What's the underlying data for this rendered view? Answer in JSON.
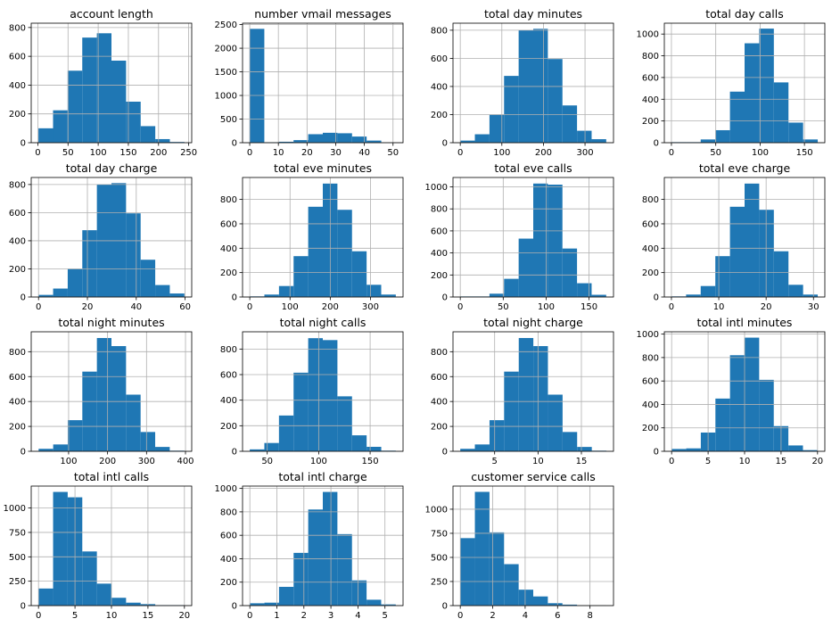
{
  "chart_data": [
    {
      "type": "bar",
      "title": "account length",
      "edges": [
        1,
        25.2,
        49.4,
        73.6,
        97.8,
        122,
        146.2,
        170.4,
        194.6,
        218.8,
        243
      ],
      "values": [
        100,
        225,
        500,
        730,
        760,
        570,
        285,
        115,
        25,
        5
      ],
      "xlim": [
        -11,
        255
      ],
      "ylim": [
        0,
        830
      ],
      "xticks": [
        0,
        50,
        100,
        150,
        200,
        250
      ],
      "yticks": [
        0,
        200,
        400,
        600,
        800
      ]
    },
    {
      "type": "bar",
      "title": "number vmail messages",
      "edges": [
        0,
        5.1,
        10.2,
        15.3,
        20.4,
        25.5,
        30.6,
        35.7,
        40.8,
        45.9,
        51
      ],
      "values": [
        2410,
        10,
        20,
        55,
        180,
        210,
        200,
        130,
        45,
        5
      ],
      "xlim": [
        -2.5,
        53.5
      ],
      "ylim": [
        0,
        2530
      ],
      "xticks": [
        0,
        10,
        20,
        30,
        40,
        50
      ],
      "yticks": [
        0,
        500,
        1000,
        1500,
        2000,
        2500
      ]
    },
    {
      "type": "bar",
      "title": "total day minutes",
      "edges": [
        0,
        35.1,
        70.2,
        105.3,
        140.4,
        175.5,
        210.6,
        245.7,
        280.8,
        315.9,
        351
      ],
      "values": [
        15,
        60,
        200,
        475,
        800,
        810,
        595,
        265,
        85,
        25
      ],
      "xlim": [
        -17.5,
        368.5
      ],
      "ylim": [
        0,
        850
      ],
      "xticks": [
        0,
        100,
        200,
        300
      ],
      "yticks": [
        0,
        200,
        400,
        600,
        800
      ]
    },
    {
      "type": "bar",
      "title": "total day calls",
      "edges": [
        0,
        16.5,
        33,
        49.5,
        66,
        82.5,
        99,
        115.5,
        132,
        148.5,
        165
      ],
      "values": [
        5,
        5,
        30,
        115,
        470,
        915,
        1050,
        555,
        185,
        30
      ],
      "xlim": [
        -8,
        173
      ],
      "ylim": [
        0,
        1100
      ],
      "xticks": [
        0,
        50,
        100,
        150
      ],
      "yticks": [
        0,
        200,
        400,
        600,
        800,
        1000
      ]
    },
    {
      "type": "bar",
      "title": "total day charge",
      "edges": [
        0,
        5.97,
        11.94,
        17.91,
        23.88,
        29.85,
        35.82,
        41.79,
        47.76,
        53.73,
        59.7
      ],
      "values": [
        15,
        60,
        200,
        475,
        800,
        810,
        595,
        265,
        85,
        25
      ],
      "xlim": [
        -3,
        62.7
      ],
      "ylim": [
        0,
        850
      ],
      "xticks": [
        0,
        20,
        40,
        60
      ],
      "yticks": [
        0,
        200,
        400,
        600,
        800
      ]
    },
    {
      "type": "bar",
      "title": "total eve minutes",
      "edges": [
        0,
        36.3,
        72.6,
        108.9,
        145.2,
        181.5,
        217.8,
        254.1,
        290.4,
        326.7,
        363
      ],
      "values": [
        5,
        20,
        90,
        335,
        740,
        930,
        715,
        375,
        100,
        20
      ],
      "xlim": [
        -18,
        381
      ],
      "ylim": [
        0,
        980
      ],
      "xticks": [
        0,
        100,
        200,
        300
      ],
      "yticks": [
        0,
        200,
        400,
        600,
        800
      ]
    },
    {
      "type": "bar",
      "title": "total eve calls",
      "edges": [
        0,
        17,
        34,
        51,
        68,
        85,
        102,
        119,
        136,
        153,
        170
      ],
      "values": [
        5,
        5,
        30,
        165,
        530,
        1030,
        1020,
        440,
        125,
        20
      ],
      "xlim": [
        -8.5,
        178.5
      ],
      "ylim": [
        0,
        1085
      ],
      "xticks": [
        0,
        50,
        100,
        150
      ],
      "yticks": [
        0,
        200,
        400,
        600,
        800,
        1000
      ]
    },
    {
      "type": "bar",
      "title": "total eve charge",
      "edges": [
        0,
        3.09,
        6.18,
        9.27,
        12.36,
        15.45,
        18.54,
        21.63,
        24.72,
        27.81,
        30.9
      ],
      "values": [
        5,
        20,
        90,
        335,
        740,
        930,
        715,
        375,
        100,
        20
      ],
      "xlim": [
        -1.5,
        32.4
      ],
      "ylim": [
        0,
        980
      ],
      "xticks": [
        0,
        10,
        20,
        30
      ],
      "yticks": [
        0,
        200,
        400,
        600,
        800
      ]
    },
    {
      "type": "bar",
      "title": "total night minutes",
      "edges": [
        23,
        60.4,
        97.8,
        135.2,
        172.6,
        210,
        247.4,
        284.8,
        322.2,
        359.6,
        397
      ],
      "values": [
        20,
        55,
        250,
        640,
        910,
        845,
        455,
        155,
        35,
        5
      ],
      "xlim": [
        4,
        416
      ],
      "ylim": [
        0,
        960
      ],
      "xticks": [
        100,
        200,
        300,
        400
      ],
      "yticks": [
        0,
        200,
        400,
        600,
        800
      ]
    },
    {
      "type": "bar",
      "title": "total night calls",
      "edges": [
        33,
        47.2,
        61.4,
        75.6,
        89.8,
        104,
        118.2,
        132.4,
        146.6,
        160.8,
        175
      ],
      "values": [
        15,
        65,
        280,
        615,
        885,
        870,
        430,
        125,
        35,
        5
      ],
      "xlim": [
        26,
        182
      ],
      "ylim": [
        0,
        935
      ],
      "xticks": [
        50,
        100,
        150
      ],
      "yticks": [
        0,
        200,
        400,
        600,
        800
      ]
    },
    {
      "type": "bar",
      "title": "total night charge",
      "edges": [
        1.04,
        2.72,
        4.41,
        6.09,
        7.78,
        9.46,
        11.14,
        12.83,
        14.51,
        16.2,
        17.88
      ],
      "values": [
        20,
        55,
        250,
        640,
        910,
        845,
        455,
        155,
        35,
        5
      ],
      "xlim": [
        0.2,
        18.7
      ],
      "ylim": [
        0,
        960
      ],
      "xticks": [
        5,
        10,
        15
      ],
      "yticks": [
        0,
        200,
        400,
        600,
        800
      ]
    },
    {
      "type": "bar",
      "title": "total intl minutes",
      "edges": [
        0,
        2,
        4,
        6,
        8,
        10,
        12,
        14,
        16,
        18,
        20
      ],
      "values": [
        20,
        25,
        160,
        450,
        820,
        970,
        610,
        215,
        50,
        10
      ],
      "xlim": [
        -1,
        21
      ],
      "ylim": [
        0,
        1020
      ],
      "xticks": [
        0,
        5,
        10,
        15,
        20
      ],
      "yticks": [
        0,
        200,
        400,
        600,
        800,
        1000
      ]
    },
    {
      "type": "bar",
      "title": "total intl calls",
      "edges": [
        0,
        2,
        4,
        6,
        8,
        10,
        12,
        14,
        16,
        18,
        20
      ],
      "values": [
        175,
        1165,
        1110,
        555,
        225,
        80,
        30,
        15,
        5,
        5
      ],
      "xlim": [
        -1,
        21
      ],
      "ylim": [
        0,
        1225
      ],
      "xticks": [
        0,
        5,
        10,
        15,
        20
      ],
      "yticks": [
        0,
        250,
        500,
        750,
        1000
      ]
    },
    {
      "type": "bar",
      "title": "total intl charge",
      "edges": [
        0,
        0.54,
        1.08,
        1.62,
        2.16,
        2.7,
        3.24,
        3.78,
        4.32,
        4.86,
        5.4
      ],
      "values": [
        20,
        25,
        160,
        450,
        820,
        970,
        610,
        215,
        50,
        10
      ],
      "xlim": [
        -0.27,
        5.67
      ],
      "ylim": [
        0,
        1020
      ],
      "xticks": [
        0,
        1,
        2,
        3,
        4,
        5
      ],
      "yticks": [
        0,
        200,
        400,
        600,
        800,
        1000
      ]
    },
    {
      "type": "bar",
      "title": "customer service calls",
      "edges": [
        0,
        0.9,
        1.8,
        2.7,
        3.6,
        4.5,
        5.4,
        6.3,
        7.2,
        8.1,
        9
      ],
      "values": [
        700,
        1180,
        760,
        430,
        165,
        95,
        25,
        10,
        2,
        2
      ],
      "xlim": [
        -0.45,
        9.45
      ],
      "ylim": [
        0,
        1240
      ],
      "xticks": [
        0,
        2,
        4,
        6,
        8
      ],
      "yticks": [
        0,
        250,
        500,
        750,
        1000
      ]
    }
  ]
}
